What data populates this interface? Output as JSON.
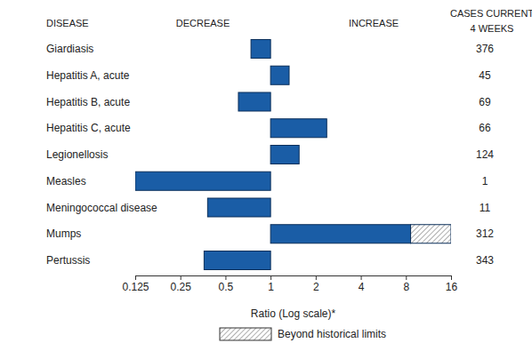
{
  "chart_data": {
    "type": "bar",
    "orientation": "horizontal",
    "log": "x",
    "column_headers": {
      "disease": "DISEASE",
      "decrease": "DECREASE",
      "increase": "INCREASE",
      "cases": [
        "CASES CURRENT",
        "4 WEEKS"
      ]
    },
    "categories": [
      "Giardiasis",
      "Hepatitis A, acute",
      "Hepatitis B, acute",
      "Hepatitis C, acute",
      "Legionellosis",
      "Measles",
      "Meningococcal disease",
      "Mumps",
      "Pertussis"
    ],
    "values": [
      0.74,
      1.33,
      0.61,
      2.37,
      1.55,
      0.125,
      0.38,
      16,
      0.36
    ],
    "historical_limits": [
      null,
      null,
      null,
      null,
      null,
      null,
      null,
      8.6,
      null
    ],
    "cases": [
      376,
      45,
      69,
      66,
      124,
      1,
      11,
      312,
      343
    ],
    "color": "#1a5da6",
    "x_label": "Ratio (Log scale)*",
    "xlim": [
      0.125,
      16
    ],
    "xticks": [
      0.125,
      0.25,
      0.5,
      1,
      2,
      4,
      8,
      16
    ],
    "legend_text": "Beyond historical limits",
    "grid": false
  }
}
